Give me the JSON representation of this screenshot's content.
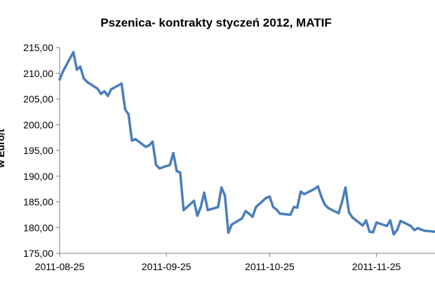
{
  "chart_data": {
    "type": "line",
    "title": "Pszenica- kontrakty styczeń 2012, MATIF",
    "xlabel": "",
    "ylabel": "w Euro/t",
    "ylim": [
      175,
      215
    ],
    "y_ticks": [
      "175,00",
      "180,00",
      "185,00",
      "190,00",
      "195,00",
      "200,00",
      "205,00",
      "210,00",
      "215,00"
    ],
    "x_ticks": [
      "2011-08-25",
      "2011-09-25",
      "2011-10-25",
      "2011-11-25"
    ],
    "x_tick_values": [
      "2011-08-25",
      "2011-09-25",
      "2011-10-25",
      "2011-11-25"
    ],
    "xlim": [
      "2011-08-25",
      "2011-12-12"
    ],
    "grid": false,
    "line_color": "#4a7ebb",
    "series": [
      {
        "name": "",
        "x": [
          "2011-08-25",
          "2011-08-26",
          "2011-08-29",
          "2011-08-30",
          "2011-08-31",
          "2011-09-01",
          "2011-09-02",
          "2011-09-05",
          "2011-09-06",
          "2011-09-07",
          "2011-09-08",
          "2011-09-09",
          "2011-09-12",
          "2011-09-13",
          "2011-09-14",
          "2011-09-15",
          "2011-09-16",
          "2011-09-19",
          "2011-09-20",
          "2011-09-21",
          "2011-09-22",
          "2011-09-23",
          "2011-09-26",
          "2011-09-27",
          "2011-09-28",
          "2011-09-29",
          "2011-09-30",
          "2011-10-03",
          "2011-10-04",
          "2011-10-05",
          "2011-10-06",
          "2011-10-07",
          "2011-10-10",
          "2011-10-11",
          "2011-10-12",
          "2011-10-13",
          "2011-10-14",
          "2011-10-17",
          "2011-10-18",
          "2011-10-19",
          "2011-10-20",
          "2011-10-21",
          "2011-10-24",
          "2011-10-25",
          "2011-10-26",
          "2011-10-27",
          "2011-10-28",
          "2011-10-31",
          "2011-11-01",
          "2011-11-02",
          "2011-11-03",
          "2011-11-04",
          "2011-11-07",
          "2011-11-08",
          "2011-11-09",
          "2011-11-10",
          "2011-11-11",
          "2011-11-14",
          "2011-11-15",
          "2011-11-16",
          "2011-11-17",
          "2011-11-18",
          "2011-11-21",
          "2011-11-22",
          "2011-11-23",
          "2011-11-24",
          "2011-11-25",
          "2011-11-28",
          "2011-11-29",
          "2011-11-30",
          "2011-12-01",
          "2011-12-02",
          "2011-12-05",
          "2011-12-06",
          "2011-12-07",
          "2011-12-08",
          "2011-12-09",
          "2011-12-12"
        ],
        "values": [
          208.8,
          210.4,
          214.1,
          210.7,
          211.3,
          209.0,
          208.3,
          207.0,
          206.0,
          206.5,
          205.6,
          206.9,
          208.0,
          203.0,
          202.0,
          196.9,
          197.2,
          195.7,
          196.0,
          196.7,
          192.2,
          191.5,
          192.2,
          194.5,
          191.0,
          190.7,
          183.4,
          185.2,
          182.3,
          184.0,
          186.8,
          183.4,
          184.0,
          187.8,
          186.2,
          179.0,
          180.6,
          181.8,
          183.2,
          182.7,
          182.1,
          184.0,
          185.8,
          186.0,
          184.0,
          183.5,
          182.7,
          182.5,
          184.0,
          183.9,
          187.0,
          186.5,
          187.5,
          188.0,
          186.0,
          184.5,
          183.8,
          182.8,
          185.0,
          187.8,
          183.0,
          182.0,
          180.4,
          181.4,
          179.2,
          179.1,
          181.0,
          180.3,
          181.4,
          178.7,
          179.5,
          181.3,
          180.3,
          179.5,
          179.9,
          179.6,
          179.4,
          179.2
        ]
      }
    ]
  }
}
